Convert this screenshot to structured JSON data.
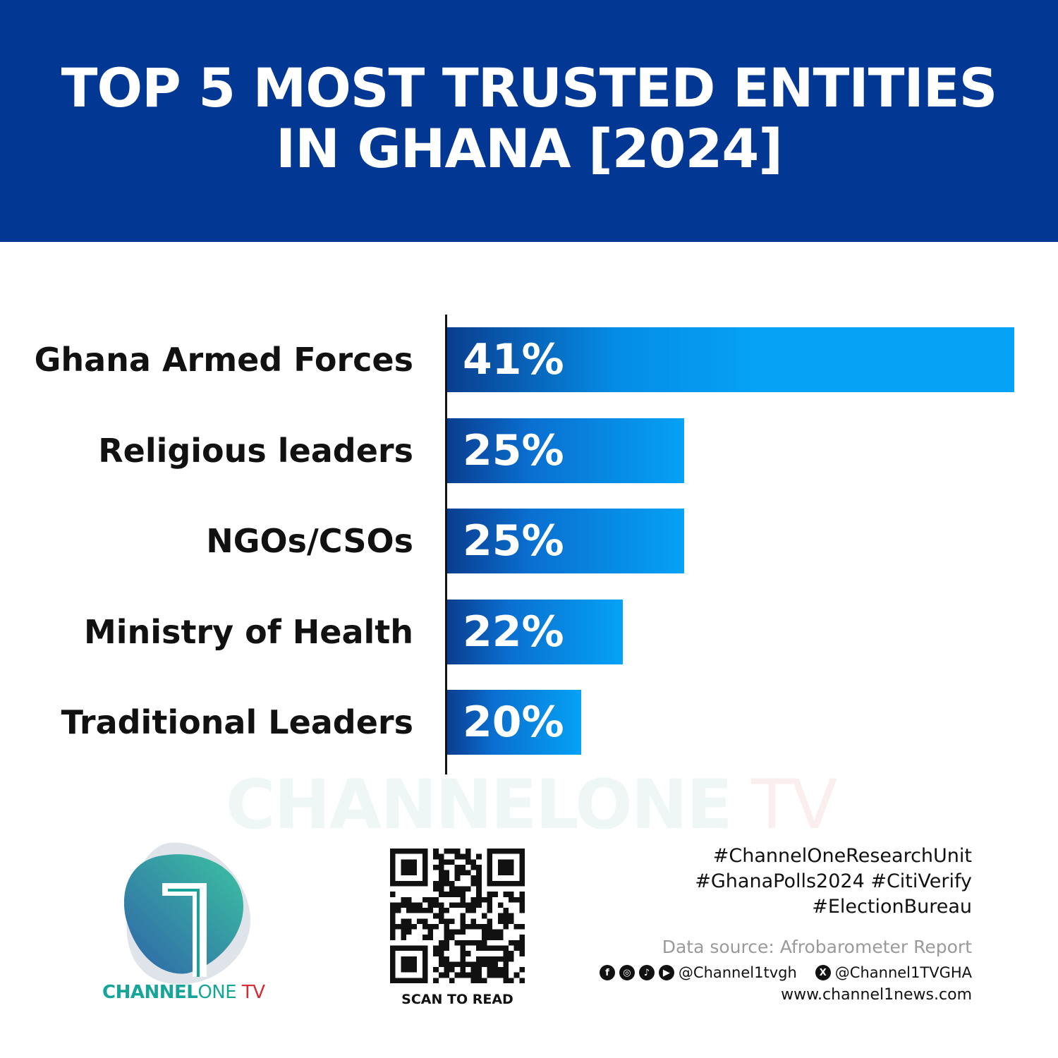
{
  "header": {
    "title_line1": "TOP 5 MOST TRUSTED ENTITIES",
    "title_line2": "IN GHANA [2024]"
  },
  "colors": {
    "header": "#023894",
    "bar_dark": "#0a3d8f",
    "bar_light": "#05a2f5",
    "brand_teal": "#17a59a",
    "brand_red": "#d52b37"
  },
  "chart_data": {
    "type": "bar",
    "orientation": "horizontal",
    "title": "TOP 5 MOST TRUSTED ENTITIES IN GHANA [2024]",
    "categories": [
      "Ghana Armed Forces",
      "Religious leaders",
      "NGOs/CSOs",
      "Ministry of Health",
      "Traditional Leaders"
    ],
    "values": [
      41,
      25,
      25,
      22,
      20
    ],
    "value_labels": [
      "41%",
      "25%",
      "25%",
      "22%",
      "20%"
    ],
    "unit": "%",
    "grid": false,
    "legend": "none"
  },
  "watermark": {
    "part1": "CHANNELONE",
    "part2": " TV"
  },
  "logo": {
    "brand_bold": "CHANNEL",
    "brand_light": "ONE",
    "brand_tv": " TV",
    "icon": "channel-one-logo"
  },
  "qr": {
    "caption": "SCAN TO READ"
  },
  "footer": {
    "hashtags": [
      "#ChannelOneResearchUnit",
      "#GhanaPolls2024 #CitiVerify",
      "#ElectionBureau"
    ],
    "source": "Data source: Afrobarometer Report",
    "social_icons": [
      "facebook-icon",
      "instagram-icon",
      "tiktok-icon",
      "youtube-icon"
    ],
    "handle_main": "@Channel1tvgh",
    "x_icon": "x-icon",
    "handle_x": "@Channel1TVGHA",
    "website": "www.channel1news.com"
  }
}
